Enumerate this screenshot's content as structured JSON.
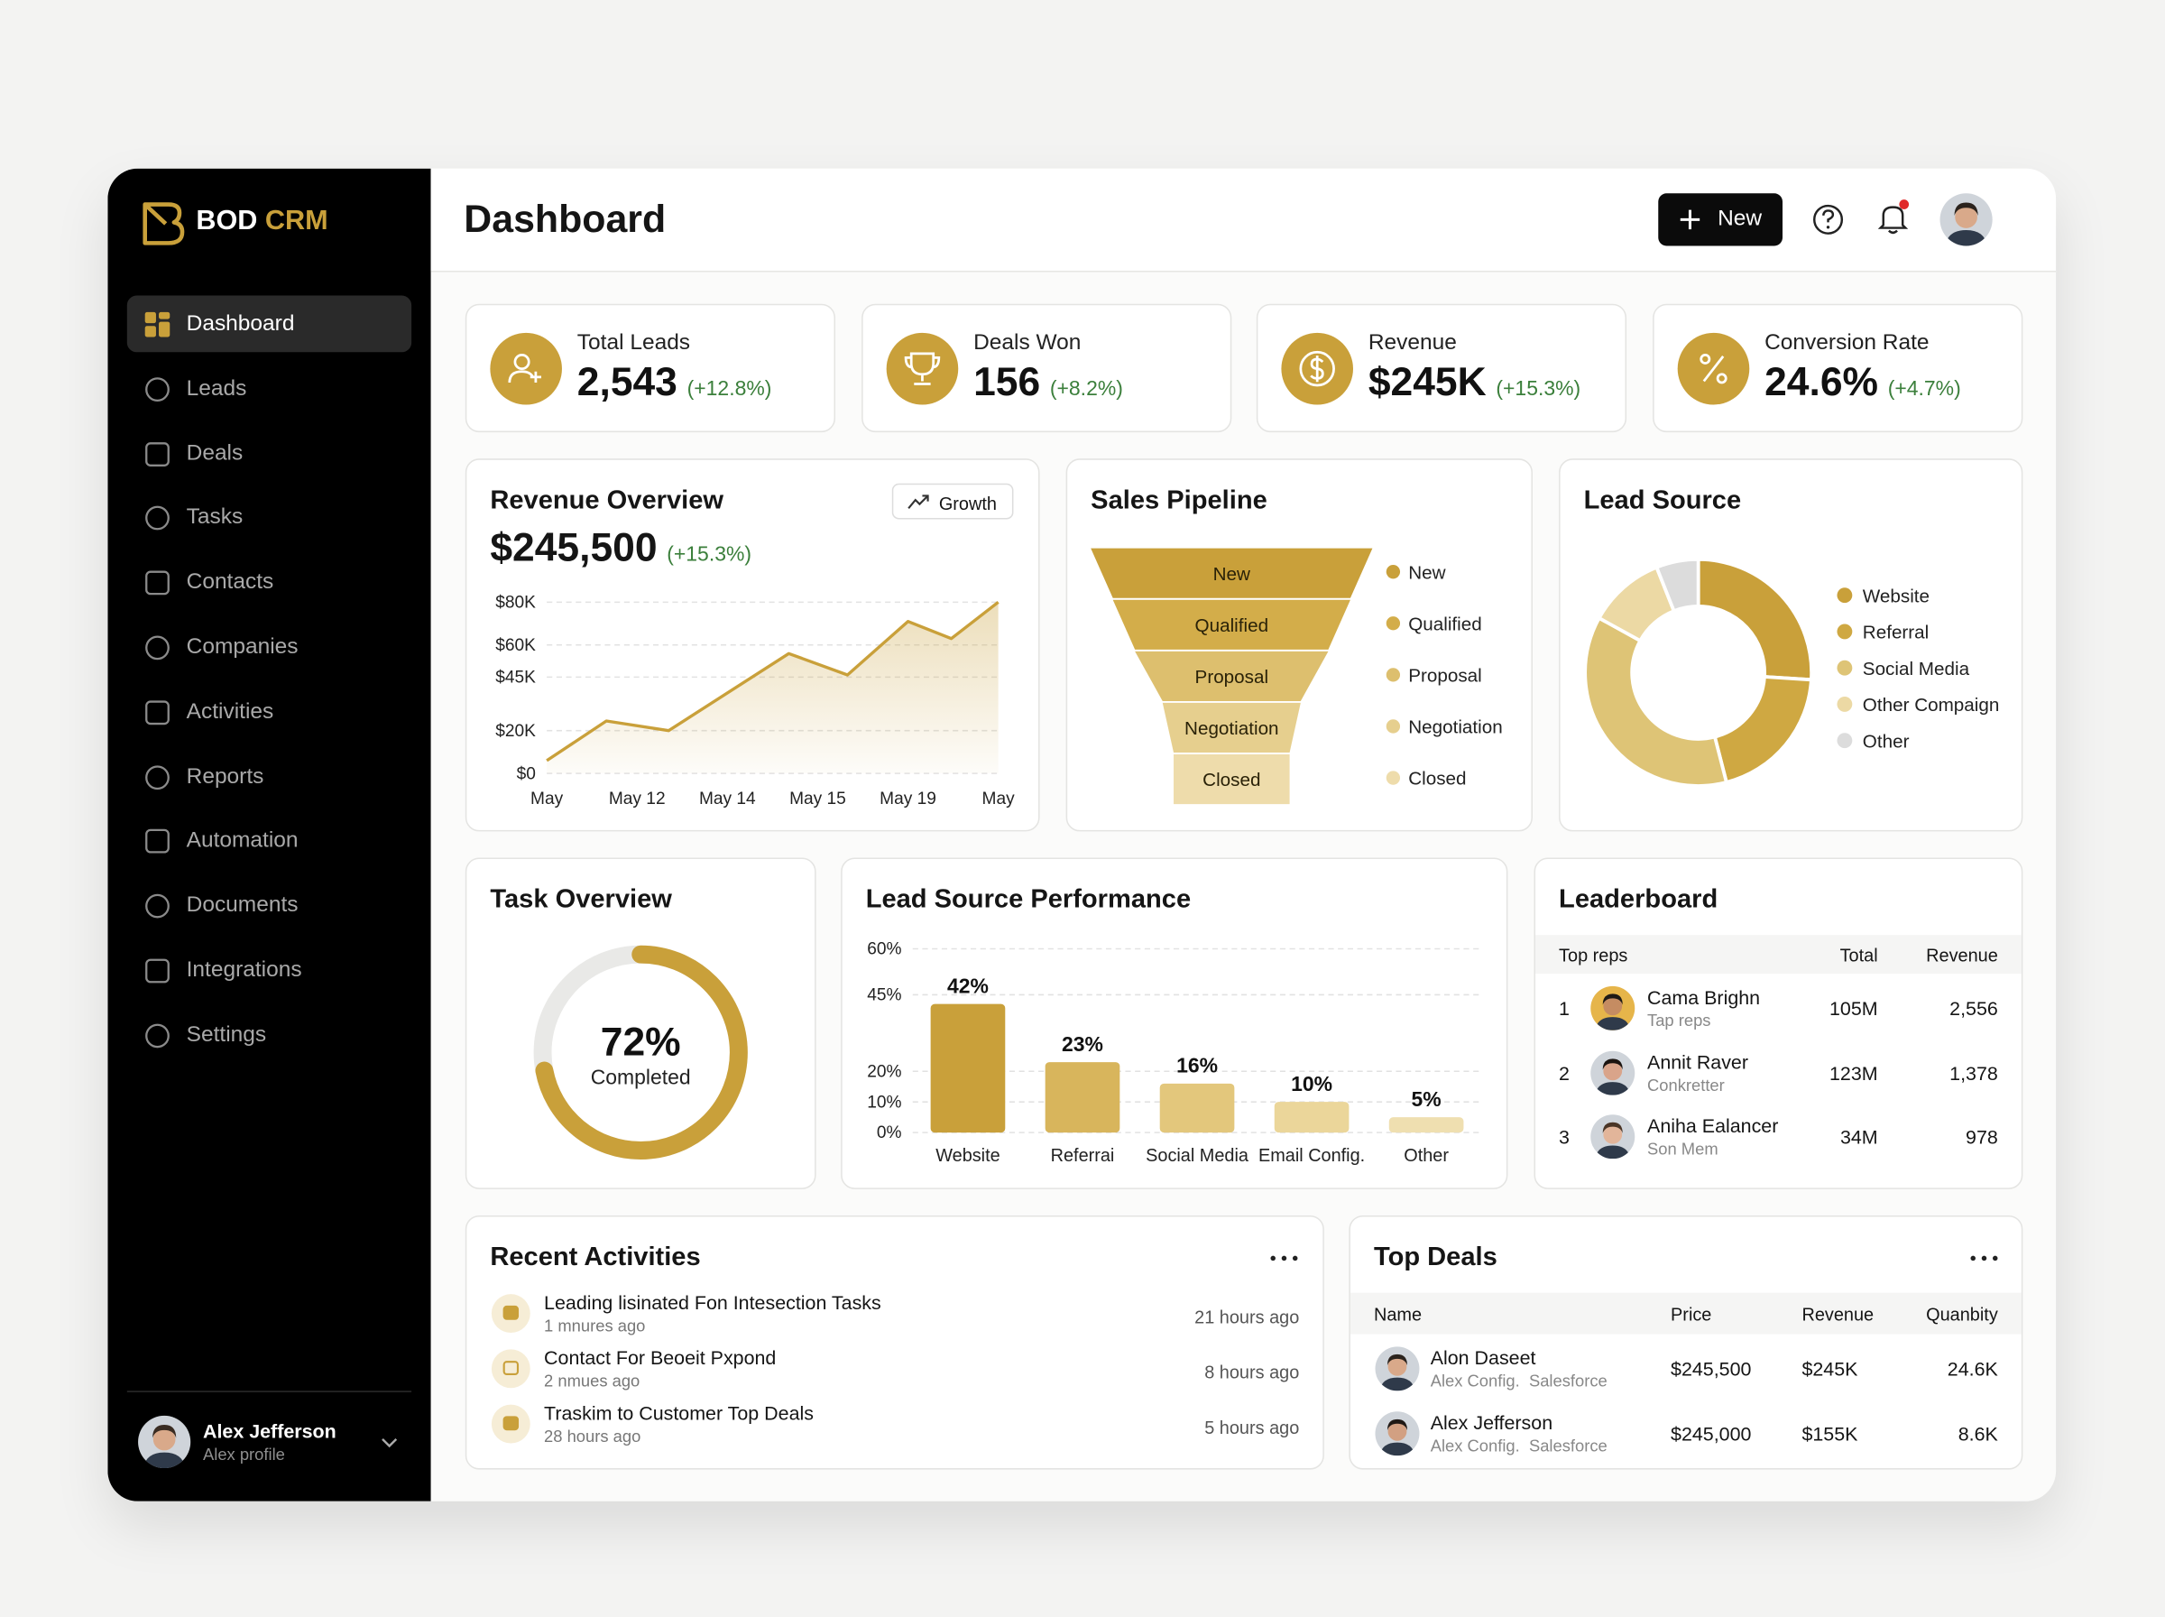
{
  "sidebar": {
    "brand": {
      "name": "BOD",
      "suffix": "CRM"
    },
    "nav": [
      "Dashboard",
      "Leads",
      "Deals",
      "Tasks",
      "Contacts",
      "Companies",
      "Activities",
      "Reports",
      "Automation",
      "Documents",
      "Integrations",
      "Settings"
    ],
    "user": {
      "name": "Alex Jefferson",
      "subtitle": "Alex profile"
    }
  },
  "header": {
    "title": "Dashboard",
    "new_button": "New"
  },
  "kpis": [
    {
      "label": "Total Leads",
      "value": "2,543",
      "change": "(+12.8%)"
    },
    {
      "label": "Deals Won",
      "value": "156",
      "change": "(+8.2%)"
    },
    {
      "label": "Revenue",
      "value": "$245K",
      "change": "(+15.3%)"
    },
    {
      "label": "Conversion Rate",
      "value": "24.6%",
      "change": "(+4.7%)"
    }
  ],
  "revenue_overview": {
    "title": "Revenue Overview",
    "badge": "Growth",
    "total": "$245,500",
    "change": "(+15.3%)",
    "chart": {
      "type": "line",
      "x": [
        0,
        0.66,
        1.35,
        2.68,
        3.33,
        4.0,
        4.48,
        5.0
      ],
      "values": [
        6000,
        24500,
        20000,
        56000,
        46000,
        71000,
        63000,
        80000
      ],
      "xlim": [
        0,
        5
      ],
      "xticks": [
        {
          "value": 0,
          "label": "May"
        },
        {
          "value": 1,
          "label": "May 12"
        },
        {
          "value": 2,
          "label": "May 14"
        },
        {
          "value": 3,
          "label": "May 15"
        },
        {
          "value": 4,
          "label": "May 19"
        },
        {
          "value": 5,
          "label": "May"
        }
      ],
      "ylim": [
        0,
        80000
      ],
      "yticks": [
        {
          "value": 0,
          "label": "$0"
        },
        {
          "value": 20000,
          "label": "$20K"
        },
        {
          "value": 45000,
          "label": "$45K"
        },
        {
          "value": 60000,
          "label": "$60K"
        },
        {
          "value": 80000,
          "label": "$80K"
        }
      ],
      "grid": true,
      "color": "#c9a03a"
    }
  },
  "sales_pipeline": {
    "title": "Sales Pipeline",
    "chart": {
      "type": "funnel",
      "categories": [
        "New",
        "Qualified",
        "Proposal",
        "Negotiation",
        "Closed"
      ],
      "colors": [
        "#c9a03a",
        "#d3ad4a",
        "#ddbf6e",
        "#e6cf8e",
        "#eedcab"
      ]
    }
  },
  "lead_source": {
    "title": "Lead Source",
    "chart": {
      "type": "pie",
      "categories": [
        "Website",
        "Referral",
        "Social Media",
        "Other Compaign",
        "Other"
      ],
      "values": [
        26,
        20,
        37,
        11,
        6
      ],
      "colors": [
        "#c9a03a",
        "#cfa842",
        "#dec476",
        "#ecd9a4",
        "#dcdcdc"
      ]
    }
  },
  "task_overview": {
    "title": "Task Overview",
    "chart": {
      "type": "gauge",
      "value": 72,
      "value_label": "72%",
      "caption": "Completed",
      "color": "#c9a03a"
    }
  },
  "lead_source_performance": {
    "title": "Lead Source Performance",
    "chart": {
      "type": "bar",
      "categories": [
        "Website",
        "Referrai",
        "Social Media",
        "Email Config.",
        "Other"
      ],
      "values": [
        42,
        23,
        16,
        10,
        5
      ],
      "value_labels": [
        "42%",
        "23%",
        "16%",
        "10%",
        "5%"
      ],
      "ylim": [
        0,
        60
      ],
      "yticks": [
        {
          "value": 0,
          "label": "0%"
        },
        {
          "value": 10,
          "label": "10%"
        },
        {
          "value": 20,
          "label": "20%"
        },
        {
          "value": 45,
          "label": "45%"
        },
        {
          "value": 60,
          "label": "60%"
        }
      ],
      "grid": true,
      "colors": [
        "#c9a03a",
        "#d8b55c",
        "#e3c77c",
        "#ebd69a",
        "#efdfb0"
      ]
    }
  },
  "leaderboard": {
    "title": "Leaderboard",
    "columns": [
      "Top reps",
      "Total",
      "Revenue"
    ],
    "rows": [
      {
        "rank": "1",
        "name": "Cama Brighn",
        "subtitle": "Tap reps",
        "total": "105M",
        "revenue": "2,556"
      },
      {
        "rank": "2",
        "name": "Annit Raver",
        "subtitle": "Conkretter",
        "total": "123M",
        "revenue": "1,378"
      },
      {
        "rank": "3",
        "name": "Aniha Ealancer",
        "subtitle": "Son Mem",
        "total": "34M",
        "revenue": "978"
      }
    ]
  },
  "recent_activities": {
    "title": "Recent Activities",
    "items": [
      {
        "title": "Leading lisinated Fon Intesection Tasks",
        "subtitle": "1 mnures ago",
        "time": "21 hours ago"
      },
      {
        "title": "Contact For Beoeit Pxpond",
        "subtitle": "2 nmues ago",
        "time": "8 hours ago"
      },
      {
        "title": "Traskim to Customer Top Deals",
        "subtitle": "28 hours ago",
        "time": "5 hours ago"
      }
    ]
  },
  "top_deals": {
    "title": "Top Deals",
    "columns": [
      "Name",
      "Price",
      "Revenue",
      "Quanbity"
    ],
    "rows": [
      {
        "name": "Alon Daseet",
        "subtitle": "Alex Config.  Salesforce",
        "price": "$245,500",
        "revenue": "$245K",
        "quantity": "24.6K"
      },
      {
        "name": "Alex Jefferson",
        "subtitle": "Alex Config.  Salesforce",
        "price": "$245,000",
        "revenue": "$155K",
        "quantity": "8.6K"
      }
    ]
  }
}
